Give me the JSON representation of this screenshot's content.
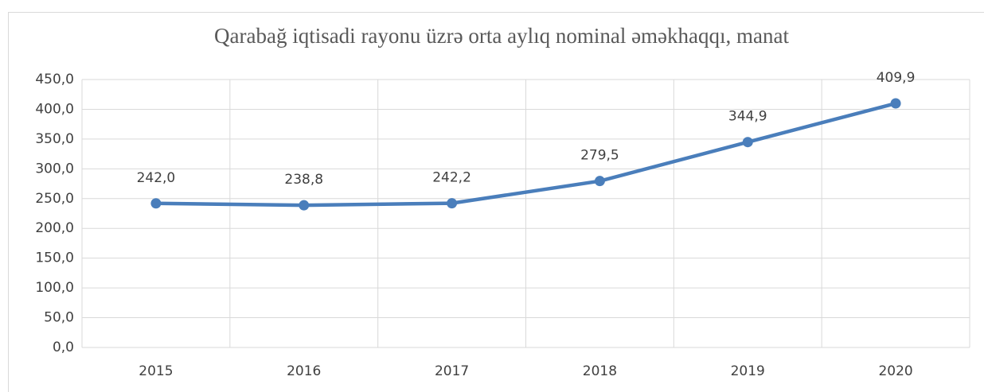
{
  "chart_data": {
    "type": "line",
    "title": "Qarabağ iqtisadi rayonu üzrə orta aylıq nominal əməkhaqqı, manat",
    "categories": [
      "2015",
      "2016",
      "2017",
      "2018",
      "2019",
      "2020"
    ],
    "series": [
      {
        "name": "Qarabağ",
        "color": "#4a7ebb",
        "values": [
          242.0,
          238.8,
          242.2,
          279.5,
          344.9,
          409.9
        ],
        "value_labels": [
          "242,0",
          "238,8",
          "242,2",
          "279,5",
          "344,9",
          "409,9"
        ]
      }
    ],
    "ylim": [
      0,
      450
    ],
    "yticks": [
      {
        "value": 0,
        "label": "0,0"
      },
      {
        "value": 50,
        "label": "50,0"
      },
      {
        "value": 100,
        "label": "100,0"
      },
      {
        "value": 150,
        "label": "150,0"
      },
      {
        "value": 200,
        "label": "200,0"
      },
      {
        "value": 250,
        "label": "250,0"
      },
      {
        "value": 300,
        "label": "300,0"
      },
      {
        "value": 350,
        "label": "350,0"
      },
      {
        "value": 400,
        "label": "400,0"
      },
      {
        "value": 450,
        "label": "450,0"
      }
    ],
    "grid": true,
    "legend": false
  }
}
